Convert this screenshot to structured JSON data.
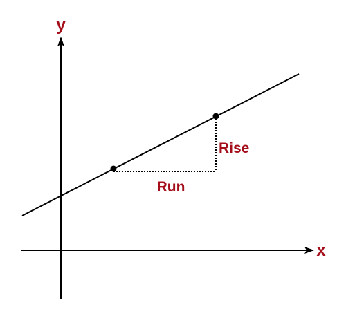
{
  "labels": {
    "y_axis": "y",
    "x_axis": "x",
    "rise": "Rise",
    "run": "Run"
  },
  "colors": {
    "label": "#a50e1b",
    "line": "#000000",
    "background": "#ffffff"
  }
}
